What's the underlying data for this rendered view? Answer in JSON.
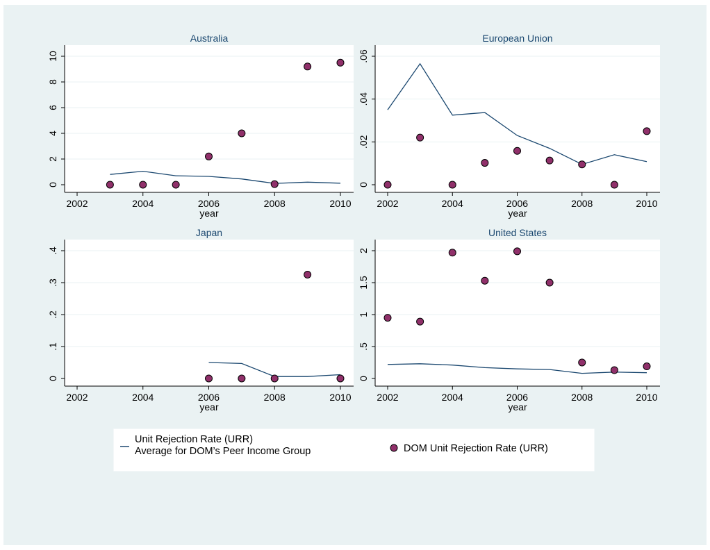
{
  "colors": {
    "outer_bg": "#eaf2f3",
    "plot_bg": "#ffffff",
    "line": "#1a476f",
    "marker_fill": "#90306a",
    "marker_stroke": "#000000",
    "grid": "#eaf2f3",
    "title": "#1a476f"
  },
  "chart_data": [
    {
      "type": "line+scatter",
      "title": "Australia",
      "xlabel": "year",
      "xlim": [
        2002,
        2010
      ],
      "ylim": [
        0,
        10
      ],
      "x_ticks": [
        2002,
        2004,
        2006,
        2008,
        2010
      ],
      "x_tick_labels": [
        "2002",
        "2004",
        "2006",
        "2008",
        "2010"
      ],
      "y_ticks": [
        0,
        2,
        4,
        6,
        8,
        10
      ],
      "y_tick_labels": [
        "0",
        "2",
        "4",
        "6",
        "8",
        "10"
      ],
      "line": {
        "x": [
          2003,
          2004,
          2005,
          2006,
          2007,
          2008,
          2009,
          2010
        ],
        "y": [
          0.8,
          1.05,
          0.7,
          0.65,
          0.45,
          0.1,
          0.2,
          0.12
        ]
      },
      "points": {
        "x": [
          2003,
          2004,
          2005,
          2006,
          2007,
          2008,
          2009,
          2010
        ],
        "y": [
          0,
          0,
          0,
          2.2,
          4.0,
          0.05,
          9.2,
          9.5
        ]
      }
    },
    {
      "type": "line+scatter",
      "title": "European Union",
      "xlabel": "year",
      "xlim": [
        2002,
        2010
      ],
      "ylim": [
        0,
        0.06
      ],
      "x_ticks": [
        2002,
        2004,
        2006,
        2008,
        2010
      ],
      "x_tick_labels": [
        "2002",
        "2004",
        "2006",
        "2008",
        "2010"
      ],
      "y_ticks": [
        0,
        0.02,
        0.04,
        0.06
      ],
      "y_tick_labels": [
        "0",
        ".02",
        ".04",
        ".06"
      ],
      "line": {
        "x": [
          2002,
          2003,
          2004,
          2005,
          2006,
          2007,
          2008,
          2009,
          2010
        ],
        "y": [
          0.035,
          0.0565,
          0.0325,
          0.0337,
          0.023,
          0.017,
          0.0095,
          0.014,
          0.0108
        ]
      },
      "points": {
        "x": [
          2002,
          2003,
          2004,
          2005,
          2006,
          2007,
          2008,
          2009,
          2010
        ],
        "y": [
          0,
          0.022,
          0,
          0.0102,
          0.0158,
          0.0113,
          0.0095,
          0,
          0.025
        ]
      }
    },
    {
      "type": "line+scatter",
      "title": "Japan",
      "xlabel": "year",
      "xlim": [
        2002,
        2010
      ],
      "ylim": [
        0,
        0.4
      ],
      "x_ticks": [
        2002,
        2004,
        2006,
        2008,
        2010
      ],
      "x_tick_labels": [
        "2002",
        "2004",
        "2006",
        "2008",
        "2010"
      ],
      "y_ticks": [
        0,
        0.1,
        0.2,
        0.3,
        0.4
      ],
      "y_tick_labels": [
        "0",
        ".1",
        ".2",
        ".3",
        ".4"
      ],
      "line": {
        "x": [
          2006,
          2007,
          2008,
          2009,
          2010
        ],
        "y": [
          0.05,
          0.047,
          0.006,
          0.006,
          0.012
        ]
      },
      "points": {
        "x": [
          2006,
          2007,
          2008,
          2009,
          2010
        ],
        "y": [
          0,
          0,
          0,
          0.325,
          0
        ]
      }
    },
    {
      "type": "line+scatter",
      "title": "United States",
      "xlabel": "year",
      "xlim": [
        2002,
        2010
      ],
      "ylim": [
        0,
        2
      ],
      "x_ticks": [
        2002,
        2004,
        2006,
        2008,
        2010
      ],
      "x_tick_labels": [
        "2002",
        "2004",
        "2006",
        "2008",
        "2010"
      ],
      "y_ticks": [
        0,
        0.5,
        1,
        1.5,
        2
      ],
      "y_tick_labels": [
        "0",
        ".5",
        "1",
        "1.5",
        "2"
      ],
      "line": {
        "x": [
          2002,
          2003,
          2004,
          2005,
          2006,
          2007,
          2008,
          2009,
          2010
        ],
        "y": [
          0.22,
          0.23,
          0.21,
          0.17,
          0.15,
          0.14,
          0.08,
          0.1,
          0.09
        ]
      },
      "points": {
        "x": [
          2002,
          2003,
          2004,
          2005,
          2006,
          2007,
          2008,
          2009,
          2010
        ],
        "y": [
          0.95,
          0.89,
          1.97,
          1.53,
          1.99,
          1.5,
          0.25,
          0.13,
          0.19
        ]
      }
    }
  ],
  "legend": {
    "placement": "bottom",
    "line_label_1": "Unit Rejection Rate (URR)",
    "line_label_2": "Average for DOM’s Peer Income Group",
    "marker_label": "DOM Unit Rejection Rate (URR)"
  }
}
